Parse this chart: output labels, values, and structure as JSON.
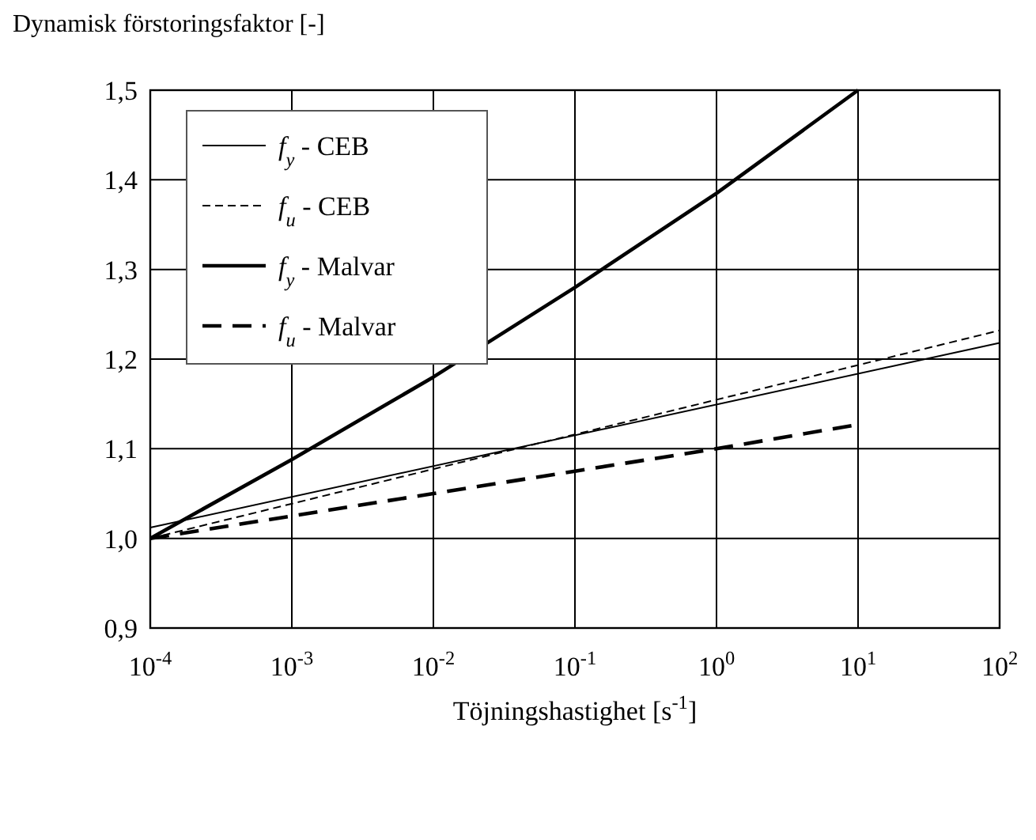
{
  "chart_data": {
    "type": "line",
    "ylabel": "Dynamisk förstoringsfaktor [-]",
    "xlabel": "Töjningshastighet [s$^{-1}$]",
    "log": "x",
    "grid": true,
    "legend": "top left",
    "xlim": [
      0.0001,
      100
    ],
    "xticks": [
      {
        "value": 0.0001,
        "label": "10$^{-4}$"
      },
      {
        "value": 0.001,
        "label": "10$^{-3}$"
      },
      {
        "value": 0.01,
        "label": "10$^{-2}$"
      },
      {
        "value": 0.1,
        "label": "10$^{-1}$"
      },
      {
        "value": 1,
        "label": "10$^{0}$"
      },
      {
        "value": 10,
        "label": "10$^{1}$"
      },
      {
        "value": 100,
        "label": "10$^{2}$"
      }
    ],
    "ylim": [
      0.9,
      1.5
    ],
    "yticks": [
      {
        "value": 0.9,
        "label": "0,9"
      },
      {
        "value": 1,
        "label": "1,0"
      },
      {
        "value": 1.1,
        "label": "1,1"
      },
      {
        "value": 1.2,
        "label": "1,2"
      },
      {
        "value": 1.3,
        "label": "1,3"
      },
      {
        "value": 1.4,
        "label": "1,4"
      },
      {
        "value": 1.5,
        "label": "1,5"
      }
    ],
    "series": [
      {
        "name": "f$_{y}$ - CEB",
        "color": "#000000",
        "line_style": "solid",
        "x": [
          0.0001,
          100
        ],
        "values": [
          1.012,
          1.218
        ]
      },
      {
        "name": "f$_{u}$ - CEB",
        "color": "#000000",
        "line_style": "dashed",
        "x": [
          0.0001,
          100
        ],
        "values": [
          1.0,
          1.232
        ]
      },
      {
        "name": "f$_{y}$ - Malvar",
        "color": "#000000",
        "line_style": "solid",
        "x": [
          0.0001,
          0.001,
          0.01,
          0.1,
          1,
          10
        ],
        "values": [
          1.0,
          1.088,
          1.18,
          1.28,
          1.385,
          1.5
        ]
      },
      {
        "name": "f$_{u}$ - Malvar",
        "color": "#000000",
        "line_style": "dashed",
        "x": [
          0.0001,
          0.001,
          0.01,
          0.1,
          1,
          10
        ],
        "values": [
          1.0,
          1.025,
          1.05,
          1.075,
          1.1,
          1.127
        ]
      }
    ]
  }
}
